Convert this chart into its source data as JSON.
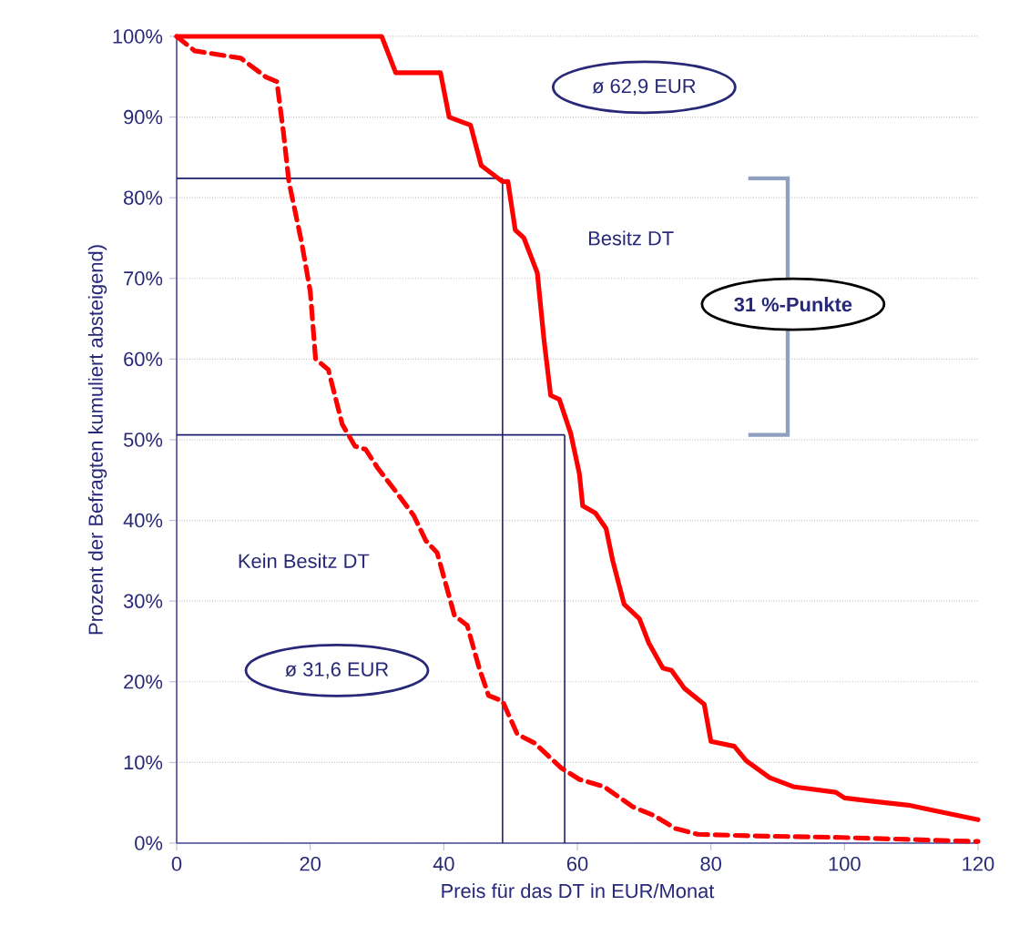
{
  "chart_data": {
    "type": "line",
    "xlabel": "Preis für das DT in EUR/Monat",
    "ylabel": "Prozent der Befragten kumuliert absteigend)",
    "xlim": [
      0,
      120
    ],
    "ylim": [
      0,
      100
    ],
    "xticks": [
      0,
      20,
      40,
      60,
      80,
      100,
      120
    ],
    "yticks": [
      {
        "value": 0,
        "label": "0%"
      },
      {
        "value": 10,
        "label": "10%"
      },
      {
        "value": 20,
        "label": "20%"
      },
      {
        "value": 30,
        "label": "30%"
      },
      {
        "value": 40,
        "label": "40%"
      },
      {
        "value": 50,
        "label": "50%"
      },
      {
        "value": 60,
        "label": "60%"
      },
      {
        "value": 70,
        "label": "70%"
      },
      {
        "value": 80,
        "label": "80%"
      },
      {
        "value": 90,
        "label": "90%"
      },
      {
        "value": 100,
        "label": "100%"
      }
    ],
    "grid": "y",
    "series": [
      {
        "name": "Besitz DT",
        "color": "#ff0000",
        "line_style": "solid",
        "x": [
          0,
          30.7,
          32.8,
          39.5,
          40.8,
          44,
          45.6,
          48.8,
          49.6,
          50.7,
          52,
          54,
          55,
          56,
          57.3,
          59,
          60.3,
          60.8,
          62.7,
          64.3,
          65.3,
          67,
          69.3,
          70.7,
          72.8,
          74.1,
          76,
          79,
          80,
          83.5,
          85.3,
          88.8,
          92.3,
          98.7,
          100,
          104,
          109.6,
          113.6,
          120
        ],
        "values": [
          100,
          100,
          95.5,
          95.5,
          90,
          89,
          84,
          82,
          82,
          76,
          75,
          70.7,
          62.4,
          55.5,
          55,
          50.8,
          45.8,
          41.8,
          40.9,
          39,
          35,
          29.6,
          27.8,
          24.8,
          21.7,
          21.4,
          19.2,
          17.2,
          12.6,
          12,
          10.2,
          8.1,
          7,
          6.3,
          5.6,
          5.2,
          4.7,
          4,
          2.9
        ]
      },
      {
        "name": "Kein Besitz DT",
        "color": "#ff0000",
        "line_style": "dashed",
        "x": [
          0,
          2.7,
          9.6,
          13.3,
          15,
          16,
          16.8,
          18.7,
          20,
          20.8,
          22.7,
          24.8,
          26.7,
          28.3,
          30.1,
          32.8,
          35.5,
          37.3,
          39,
          41.6,
          43.5,
          45.3,
          46.7,
          48.8,
          51,
          53.6,
          57.6,
          60.3,
          64,
          68.3,
          71.5,
          74.7,
          78,
          86,
          99.5,
          120
        ],
        "values": [
          100,
          98.2,
          97.3,
          95,
          94.4,
          88,
          82,
          74.5,
          68.4,
          60,
          58.7,
          51.9,
          49.2,
          48.8,
          46.5,
          43.6,
          40.6,
          37.5,
          36,
          28.2,
          27,
          21.7,
          18.3,
          17.6,
          13.5,
          12.4,
          9.3,
          7.9,
          7,
          4.5,
          3.4,
          1.8,
          1.1,
          0.9,
          0.7,
          0.2
        ]
      }
    ],
    "ref_lines": [
      {
        "axis": "y",
        "value": 82.4,
        "color": "#1f1f6e"
      },
      {
        "axis": "x",
        "value": 48.8,
        "color": "#1f1f6e"
      },
      {
        "axis": "y",
        "value": 50.6,
        "color": "#1f1f6e"
      },
      {
        "axis": "x",
        "value": 58.1,
        "color": "#1f1f6e"
      }
    ],
    "annotations": [
      "ø 62,9 EUR",
      "31 %-Punkte",
      "ø 31,6 EUR"
    ]
  }
}
